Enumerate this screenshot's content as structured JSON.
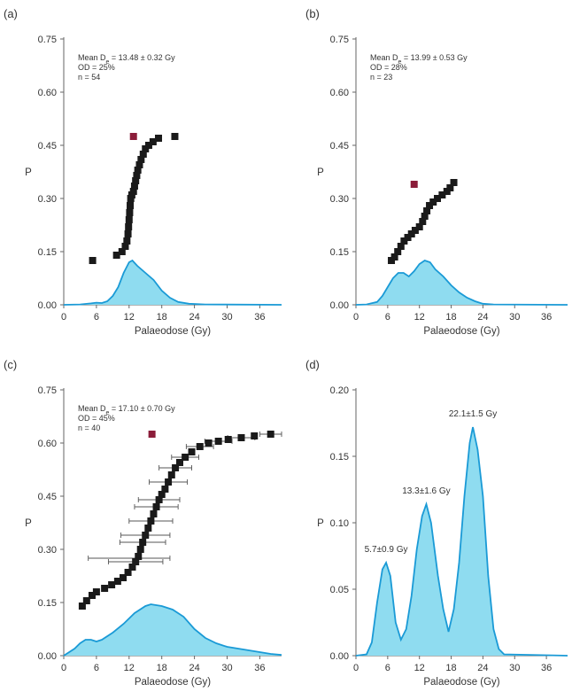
{
  "colors": {
    "kde_fill": "#8fdcf0",
    "kde_line": "#1a9ad6",
    "point": "#1a1a1a",
    "highlight": "#8b1d3a",
    "axis": "#666666",
    "text": "#333333"
  },
  "chart_data": [
    {
      "panel": "(a)",
      "type": "scatter",
      "xlabel": "Palaeodose (Gy)",
      "ylabel": "P",
      "xlim": [
        0,
        40
      ],
      "ylim": [
        0,
        0.75
      ],
      "xticks": [
        "0",
        "6",
        "12",
        "18",
        "24",
        "30",
        "36"
      ],
      "yticks": [
        "0.00",
        "0.15",
        "0.30",
        "0.45",
        "0.60",
        "0.75"
      ],
      "annotation": {
        "line1_prefix": "Mean D",
        "line1_sub": "e",
        "line1_rest": " = 13.48 ± 0.32 Gy",
        "line2": "OD = 25%",
        "line3": "n = 54"
      },
      "highlight": {
        "x": 12.8,
        "y": 0.475
      },
      "points": [
        [
          5.3,
          0.125
        ],
        [
          9.7,
          0.14
        ],
        [
          10.7,
          0.15
        ],
        [
          11.3,
          0.165
        ],
        [
          11.6,
          0.18
        ],
        [
          11.8,
          0.2
        ],
        [
          11.9,
          0.22
        ],
        [
          12.0,
          0.24
        ],
        [
          12.1,
          0.26
        ],
        [
          12.2,
          0.28
        ],
        [
          12.3,
          0.3
        ],
        [
          12.5,
          0.31
        ],
        [
          12.8,
          0.32
        ],
        [
          13.0,
          0.335
        ],
        [
          13.2,
          0.35
        ],
        [
          13.4,
          0.365
        ],
        [
          13.6,
          0.38
        ],
        [
          13.9,
          0.395
        ],
        [
          14.2,
          0.41
        ],
        [
          14.6,
          0.425
        ],
        [
          15.0,
          0.44
        ],
        [
          15.6,
          0.45
        ],
        [
          16.4,
          0.46
        ],
        [
          17.4,
          0.47
        ],
        [
          20.4,
          0.475
        ]
      ],
      "kde": [
        [
          0,
          0
        ],
        [
          3,
          0.001
        ],
        [
          5,
          0.004
        ],
        [
          6,
          0.006
        ],
        [
          7,
          0.005
        ],
        [
          8,
          0.01
        ],
        [
          9,
          0.025
        ],
        [
          10,
          0.05
        ],
        [
          11,
          0.09
        ],
        [
          12,
          0.12
        ],
        [
          12.6,
          0.125
        ],
        [
          13.5,
          0.11
        ],
        [
          15,
          0.09
        ],
        [
          16.5,
          0.07
        ],
        [
          18,
          0.04
        ],
        [
          19.5,
          0.02
        ],
        [
          21,
          0.008
        ],
        [
          23,
          0.003
        ],
        [
          26,
          0.001
        ],
        [
          40,
          0
        ]
      ]
    },
    {
      "panel": "(b)",
      "type": "scatter",
      "xlabel": "Palaeodose (Gy)",
      "ylabel": "P",
      "xlim": [
        0,
        40
      ],
      "ylim": [
        0,
        0.75
      ],
      "xticks": [
        "0",
        "6",
        "12",
        "18",
        "24",
        "30",
        "36"
      ],
      "yticks": [
        "0.00",
        "0.15",
        "0.30",
        "0.45",
        "0.60",
        "0.75"
      ],
      "annotation": {
        "line1_prefix": "Mean D",
        "line1_sub": "e",
        "line1_rest": " = 13.99 ± 0.53 Gy",
        "line2": "OD = 28%",
        "line3": "n = 23"
      },
      "highlight": {
        "x": 11.0,
        "y": 0.34
      },
      "points": [
        [
          6.7,
          0.125
        ],
        [
          7.3,
          0.135
        ],
        [
          7.9,
          0.15
        ],
        [
          8.5,
          0.165
        ],
        [
          9.1,
          0.18
        ],
        [
          9.8,
          0.19
        ],
        [
          10.5,
          0.2
        ],
        [
          11.2,
          0.21
        ],
        [
          12.0,
          0.22
        ],
        [
          12.6,
          0.235
        ],
        [
          13.0,
          0.25
        ],
        [
          13.4,
          0.265
        ],
        [
          13.9,
          0.28
        ],
        [
          14.6,
          0.29
        ],
        [
          15.4,
          0.3
        ],
        [
          16.3,
          0.31
        ],
        [
          17.2,
          0.32
        ],
        [
          17.8,
          0.33
        ],
        [
          18.5,
          0.345
        ]
      ],
      "kde": [
        [
          0,
          0
        ],
        [
          2,
          0.001
        ],
        [
          4,
          0.008
        ],
        [
          5,
          0.025
        ],
        [
          6,
          0.05
        ],
        [
          7,
          0.075
        ],
        [
          8,
          0.09
        ],
        [
          9,
          0.09
        ],
        [
          10,
          0.08
        ],
        [
          11,
          0.095
        ],
        [
          12,
          0.115
        ],
        [
          13,
          0.125
        ],
        [
          14,
          0.12
        ],
        [
          15,
          0.1
        ],
        [
          16.5,
          0.08
        ],
        [
          18,
          0.055
        ],
        [
          19.5,
          0.035
        ],
        [
          21,
          0.02
        ],
        [
          22.5,
          0.01
        ],
        [
          24,
          0.003
        ],
        [
          26,
          0.001
        ],
        [
          40,
          0
        ]
      ]
    },
    {
      "panel": "(c)",
      "type": "scatter",
      "xlabel": "Palaeodose (Gy)",
      "ylabel": "P",
      "xlim": [
        0,
        40
      ],
      "ylim": [
        0,
        0.75
      ],
      "xticks": [
        "0",
        "6",
        "12",
        "18",
        "24",
        "30",
        "36"
      ],
      "yticks": [
        "0.00",
        "0.15",
        "0.30",
        "0.45",
        "0.60",
        "0.75"
      ],
      "annotation": {
        "line1_prefix": "Mean D",
        "line1_sub": "e",
        "line1_rest": " = 17.10 ± 0.70 Gy",
        "line2": "OD = 45%",
        "line3": "n = 40"
      },
      "highlight": {
        "x": 16.2,
        "y": 0.625
      },
      "points": [
        [
          3.4,
          0.14
        ],
        [
          4.2,
          0.155
        ],
        [
          5.2,
          0.17
        ],
        [
          6.0,
          0.18
        ],
        [
          7.5,
          0.19
        ],
        [
          8.8,
          0.2
        ],
        [
          9.9,
          0.21
        ],
        [
          10.9,
          0.22
        ],
        [
          11.8,
          0.235
        ],
        [
          12.6,
          0.25
        ],
        [
          13.2,
          0.265
        ],
        [
          13.7,
          0.28
        ],
        [
          14.1,
          0.3
        ],
        [
          14.5,
          0.32
        ],
        [
          15.0,
          0.34
        ],
        [
          15.5,
          0.36
        ],
        [
          16.0,
          0.38
        ],
        [
          16.5,
          0.4
        ],
        [
          17.0,
          0.42
        ],
        [
          17.5,
          0.44
        ],
        [
          18.0,
          0.455
        ],
        [
          18.6,
          0.47
        ],
        [
          19.2,
          0.49
        ],
        [
          19.8,
          0.51
        ],
        [
          20.5,
          0.53
        ],
        [
          21.3,
          0.545
        ],
        [
          22.3,
          0.56
        ],
        [
          23.5,
          0.575
        ],
        [
          25.0,
          0.59
        ],
        [
          26.6,
          0.6
        ],
        [
          28.4,
          0.605
        ],
        [
          30.2,
          0.61
        ],
        [
          32.6,
          0.615
        ],
        [
          35.0,
          0.62
        ],
        [
          38.0,
          0.625
        ]
      ],
      "errors": [
        [
          13.2,
          0.265,
          5.0
        ],
        [
          14.5,
          0.32,
          4.2
        ],
        [
          16.0,
          0.38,
          4.0
        ],
        [
          17.5,
          0.44,
          3.8
        ],
        [
          19.2,
          0.49,
          3.5
        ],
        [
          20.5,
          0.53,
          3.0
        ],
        [
          22.3,
          0.56,
          2.5
        ],
        [
          25.0,
          0.59,
          2.5
        ],
        [
          28.4,
          0.605,
          2.5
        ],
        [
          32.6,
          0.615,
          2.5
        ],
        [
          12.0,
          0.275,
          7.5
        ],
        [
          15.0,
          0.34,
          4.5
        ],
        [
          17.0,
          0.42,
          4.0
        ],
        [
          38.0,
          0.625,
          2.0
        ]
      ],
      "kde": [
        [
          0,
          0
        ],
        [
          2,
          0.02
        ],
        [
          3,
          0.035
        ],
        [
          4,
          0.045
        ],
        [
          5,
          0.045
        ],
        [
          6,
          0.04
        ],
        [
          7,
          0.045
        ],
        [
          9,
          0.065
        ],
        [
          11,
          0.09
        ],
        [
          13,
          0.12
        ],
        [
          15,
          0.14
        ],
        [
          16,
          0.145
        ],
        [
          18,
          0.14
        ],
        [
          20,
          0.13
        ],
        [
          22,
          0.11
        ],
        [
          24,
          0.075
        ],
        [
          26,
          0.05
        ],
        [
          28,
          0.035
        ],
        [
          30,
          0.025
        ],
        [
          32,
          0.02
        ],
        [
          34,
          0.015
        ],
        [
          36,
          0.01
        ],
        [
          38,
          0.005
        ],
        [
          40,
          0.002
        ]
      ]
    },
    {
      "panel": "(d)",
      "type": "area",
      "xlabel": "Palaeodose (Gy)",
      "ylabel": "P",
      "xlim": [
        0,
        40
      ],
      "ylim": [
        0,
        0.2
      ],
      "xticks": [
        "0",
        "6",
        "12",
        "18",
        "24",
        "30",
        "36"
      ],
      "yticks": [
        "0.00",
        "0.05",
        "0.10",
        "0.15",
        "0.20"
      ],
      "peak_labels": [
        {
          "text": "5.7±0.9 Gy",
          "x": 5.7,
          "y": 0.07
        },
        {
          "text": "13.3±1.6 Gy",
          "x": 13.3,
          "y": 0.114
        },
        {
          "text": "22.1±1.5 Gy",
          "x": 22.1,
          "y": 0.172
        }
      ],
      "kde": [
        [
          0,
          0
        ],
        [
          2,
          0.001
        ],
        [
          3,
          0.01
        ],
        [
          4,
          0.04
        ],
        [
          5,
          0.065
        ],
        [
          5.7,
          0.07
        ],
        [
          6.5,
          0.06
        ],
        [
          7.5,
          0.025
        ],
        [
          8.5,
          0.012
        ],
        [
          9.5,
          0.02
        ],
        [
          10.5,
          0.045
        ],
        [
          11.5,
          0.08
        ],
        [
          12.5,
          0.105
        ],
        [
          13.3,
          0.114
        ],
        [
          14.2,
          0.1
        ],
        [
          15.5,
          0.06
        ],
        [
          16.5,
          0.035
        ],
        [
          17.5,
          0.018
        ],
        [
          18.5,
          0.035
        ],
        [
          19.5,
          0.07
        ],
        [
          20.5,
          0.12
        ],
        [
          21.5,
          0.16
        ],
        [
          22.1,
          0.172
        ],
        [
          23,
          0.155
        ],
        [
          24,
          0.12
        ],
        [
          25,
          0.06
        ],
        [
          26,
          0.02
        ],
        [
          27,
          0.005
        ],
        [
          28,
          0.001
        ],
        [
          40,
          0
        ]
      ]
    }
  ]
}
